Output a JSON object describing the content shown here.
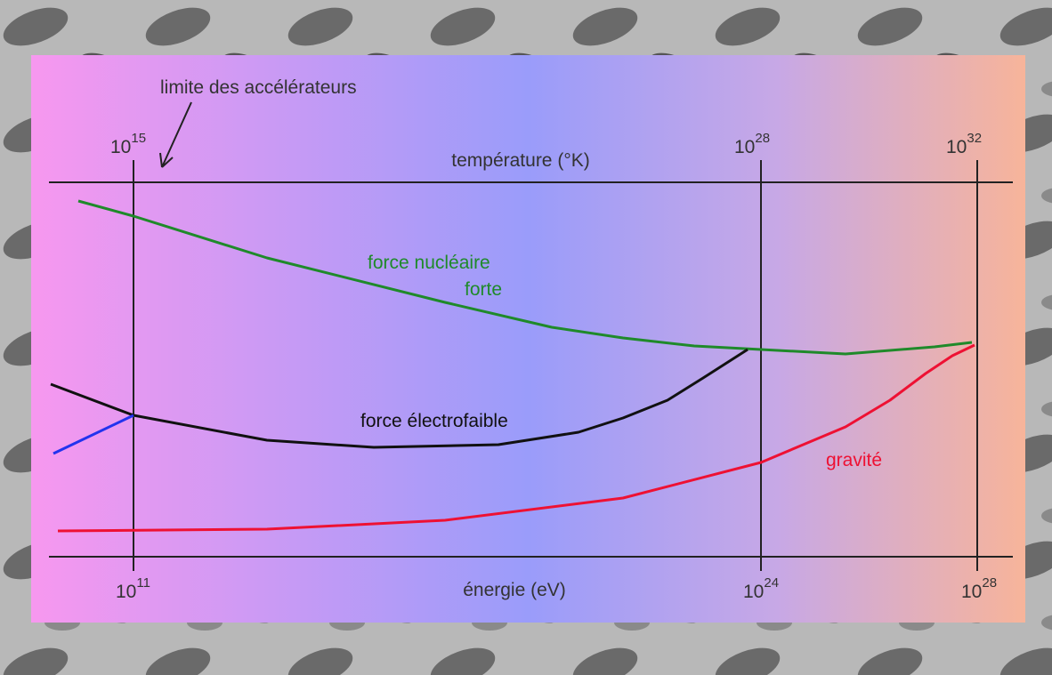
{
  "annotation": "limite des accélérateurs",
  "top_axis": {
    "title": "température (°K)",
    "ticks": [
      {
        "base": "10",
        "exp": "15"
      },
      {
        "base": "10",
        "exp": "28"
      },
      {
        "base": "10",
        "exp": "32"
      }
    ]
  },
  "bottom_axis": {
    "title": "énergie (eV)",
    "ticks": [
      {
        "base": "10",
        "exp": "11"
      },
      {
        "base": "10",
        "exp": "24"
      },
      {
        "base": "10",
        "exp": "28"
      }
    ]
  },
  "curves": [
    {
      "label": [
        "force nucléaire",
        "forte"
      ]
    },
    {
      "label": [
        "force électrofaible"
      ]
    },
    {
      "label": [
        "gravité"
      ]
    }
  ]
}
